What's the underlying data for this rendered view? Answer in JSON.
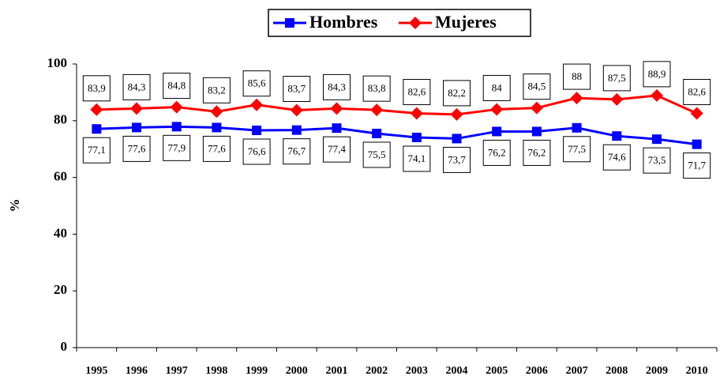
{
  "chart_data": {
    "type": "line",
    "categories": [
      "1995",
      "1996",
      "1997",
      "1998",
      "1999",
      "2000",
      "2001",
      "2002",
      "2003",
      "2004",
      "2005",
      "2006",
      "2007",
      "2008",
      "2009",
      "2010"
    ],
    "series": [
      {
        "name": "Hombres",
        "color": "#0000ff",
        "marker": "square",
        "values": [
          77.1,
          77.6,
          77.9,
          77.6,
          76.6,
          76.7,
          77.4,
          75.5,
          74.1,
          73.7,
          76.2,
          76.2,
          77.5,
          74.6,
          73.5,
          71.7
        ],
        "value_labels": [
          "77,1",
          "77,6",
          "77,9",
          "77,6",
          "76,6",
          "76,7",
          "77,4",
          "75,5",
          "74,1",
          "73,7",
          "76,2",
          "76,2",
          "77,5",
          "74,6",
          "73,5",
          "71,7"
        ]
      },
      {
        "name": "Mujeres",
        "color": "#ff0000",
        "marker": "diamond",
        "values": [
          83.9,
          84.3,
          84.8,
          83.2,
          85.6,
          83.7,
          84.3,
          83.8,
          82.6,
          82.2,
          84,
          84.5,
          88,
          87.5,
          88.9,
          82.6
        ],
        "value_labels": [
          "83,9",
          "84,3",
          "84,8",
          "83,2",
          "85,6",
          "83,7",
          "84,3",
          "83,8",
          "82,6",
          "82,2",
          "84",
          "84,5",
          "88",
          "87,5",
          "88,9",
          "82,6"
        ]
      }
    ],
    "y_label": "%",
    "ylim": [
      0,
      100
    ],
    "yticks": [
      0,
      20,
      40,
      60,
      80,
      100
    ],
    "legend": "top"
  }
}
